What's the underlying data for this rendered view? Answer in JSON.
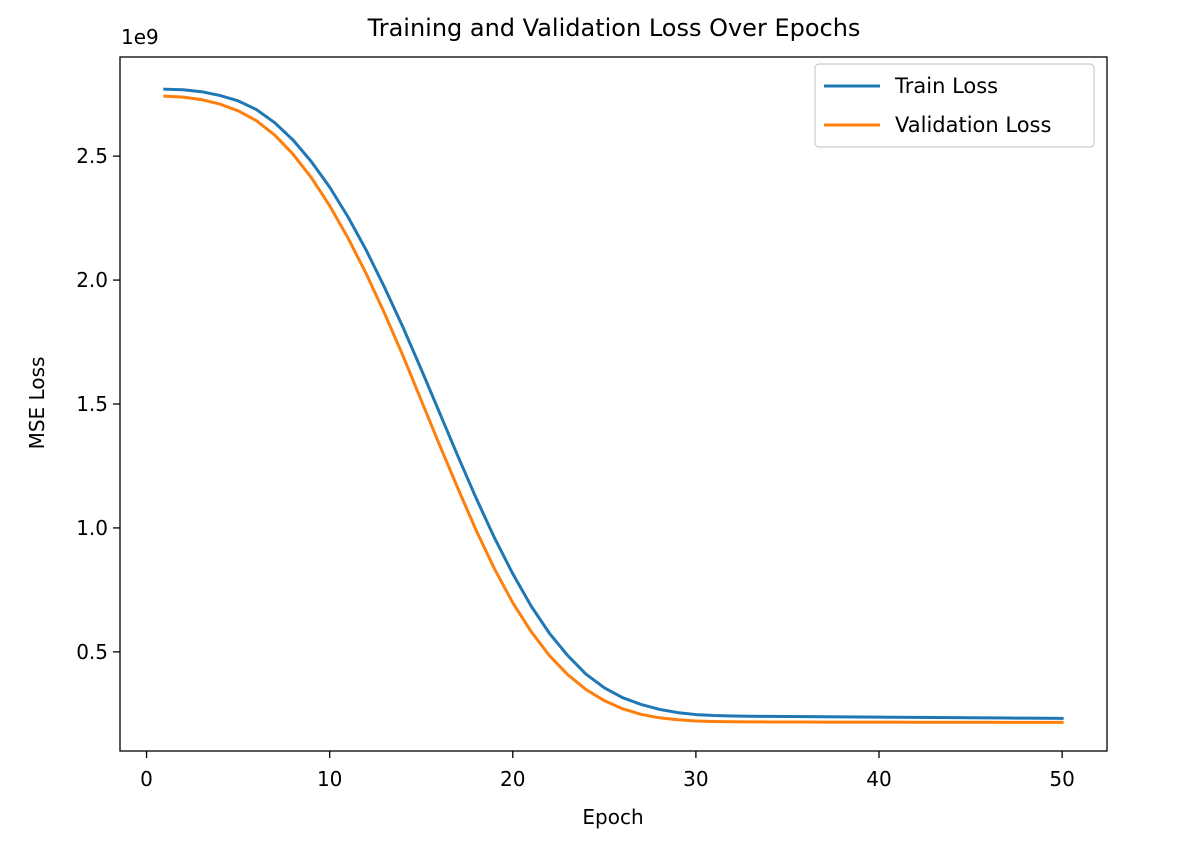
{
  "chart_data": {
    "type": "line",
    "title": "Training and Validation Loss Over Epochs",
    "xlabel": "Epoch",
    "ylabel": "MSE Loss",
    "y_offset_text": "1e9",
    "y_scale_factor": 1000000000,
    "xlim": [
      -1.45,
      52.45
    ],
    "ylim": [
      100000000,
      2900000000
    ],
    "x_ticks": [
      0,
      10,
      20,
      30,
      40,
      50
    ],
    "x_tick_labels": [
      "0",
      "10",
      "20",
      "30",
      "40",
      "50"
    ],
    "y_ticks": [
      500000000,
      1000000000,
      1500000000,
      2000000000,
      2500000000
    ],
    "y_tick_labels": [
      "0.5",
      "1.0",
      "1.5",
      "2.0",
      "2.5"
    ],
    "grid": false,
    "legend_position": "upper right",
    "x": [
      1,
      2,
      3,
      4,
      5,
      6,
      7,
      8,
      9,
      10,
      11,
      12,
      13,
      14,
      15,
      16,
      17,
      18,
      19,
      20,
      21,
      22,
      23,
      24,
      25,
      26,
      27,
      28,
      29,
      30,
      31,
      32,
      33,
      34,
      35,
      36,
      37,
      38,
      39,
      40,
      41,
      42,
      43,
      44,
      45,
      46,
      47,
      48,
      49,
      50
    ],
    "series": [
      {
        "name": "Train Loss",
        "color": "#1f77b4",
        "values": [
          2770000000,
          2768000000,
          2760000000,
          2745000000,
          2723000000,
          2688000000,
          2635000000,
          2565000000,
          2478000000,
          2375000000,
          2255000000,
          2120000000,
          1970000000,
          1810000000,
          1640000000,
          1465000000,
          1290000000,
          1120000000,
          960000000,
          815000000,
          685000000,
          575000000,
          485000000,
          410000000,
          355000000,
          315000000,
          288000000,
          268000000,
          255000000,
          247000000,
          243000000,
          241000000,
          240000000,
          239500000,
          239000000,
          238500000,
          238000000,
          237500000,
          237000000,
          236500000,
          236000000,
          235500000,
          235000000,
          234500000,
          234000000,
          233500000,
          233000000,
          232500000,
          232000000,
          231500000
        ]
      },
      {
        "name": "Validation Loss",
        "color": "#ff7f0e",
        "values": [
          2742000000,
          2738000000,
          2728000000,
          2710000000,
          2683000000,
          2643000000,
          2585000000,
          2508000000,
          2413000000,
          2300000000,
          2170000000,
          2025000000,
          1865000000,
          1695000000,
          1515000000,
          1335000000,
          1160000000,
          990000000,
          835000000,
          698000000,
          582000000,
          485000000,
          408000000,
          348000000,
          303000000,
          270000000,
          248000000,
          234000000,
          226000000,
          221000000,
          219000000,
          218000000,
          217500000,
          217200000,
          217000000,
          216800000,
          216700000,
          216600000,
          216500000,
          216400000,
          216300000,
          216200000,
          216100000,
          216000000,
          215900000,
          215800000,
          215700000,
          215600000,
          215500000,
          215400000
        ]
      }
    ]
  }
}
